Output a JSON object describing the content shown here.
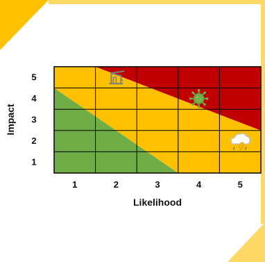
{
  "chart_data": {
    "type": "heatmap",
    "title": "",
    "xlabel": "Likelihood",
    "ylabel": "Impact",
    "xlim": [
      0.5,
      5.5
    ],
    "ylim": [
      0.5,
      5.5
    ],
    "grid": true,
    "x": [
      1,
      2,
      3,
      4,
      5
    ],
    "y": [
      1,
      2,
      3,
      4,
      5
    ],
    "x_tick_labels": [
      "1",
      "2",
      "3",
      "4",
      "5"
    ],
    "y_tick_labels": [
      "1",
      "2",
      "3",
      "4",
      "5"
    ],
    "zones": [
      {
        "name": "green",
        "color": "#70AD47",
        "polygon": [
          [
            0.5,
            0.5
          ],
          [
            0.5,
            4.5
          ],
          [
            3.5,
            0.5
          ]
        ]
      },
      {
        "name": "yellow",
        "color": "#FFC000",
        "polygon": [
          [
            0.5,
            4.5
          ],
          [
            0.5,
            5.5
          ],
          [
            1.5,
            5.5
          ],
          [
            5.5,
            2.5
          ],
          [
            5.5,
            1.5
          ],
          [
            5.5,
            0.5
          ],
          [
            3.5,
            0.5
          ]
        ]
      },
      {
        "name": "red",
        "color": "#C00000",
        "polygon": [
          [
            1.5,
            5.5
          ],
          [
            5.5,
            5.5
          ],
          [
            5.5,
            2.5
          ]
        ]
      }
    ],
    "markers": [
      {
        "icon": "crane-icon",
        "x": 2,
        "y": 5
      },
      {
        "icon": "virus-icon",
        "x": 4,
        "y": 4
      },
      {
        "icon": "storm-cloud-icon",
        "x": 5,
        "y": 2
      }
    ]
  },
  "colors": {
    "accent": "#FFC000",
    "accent_light": "#FFD966",
    "grid": "#000000"
  }
}
